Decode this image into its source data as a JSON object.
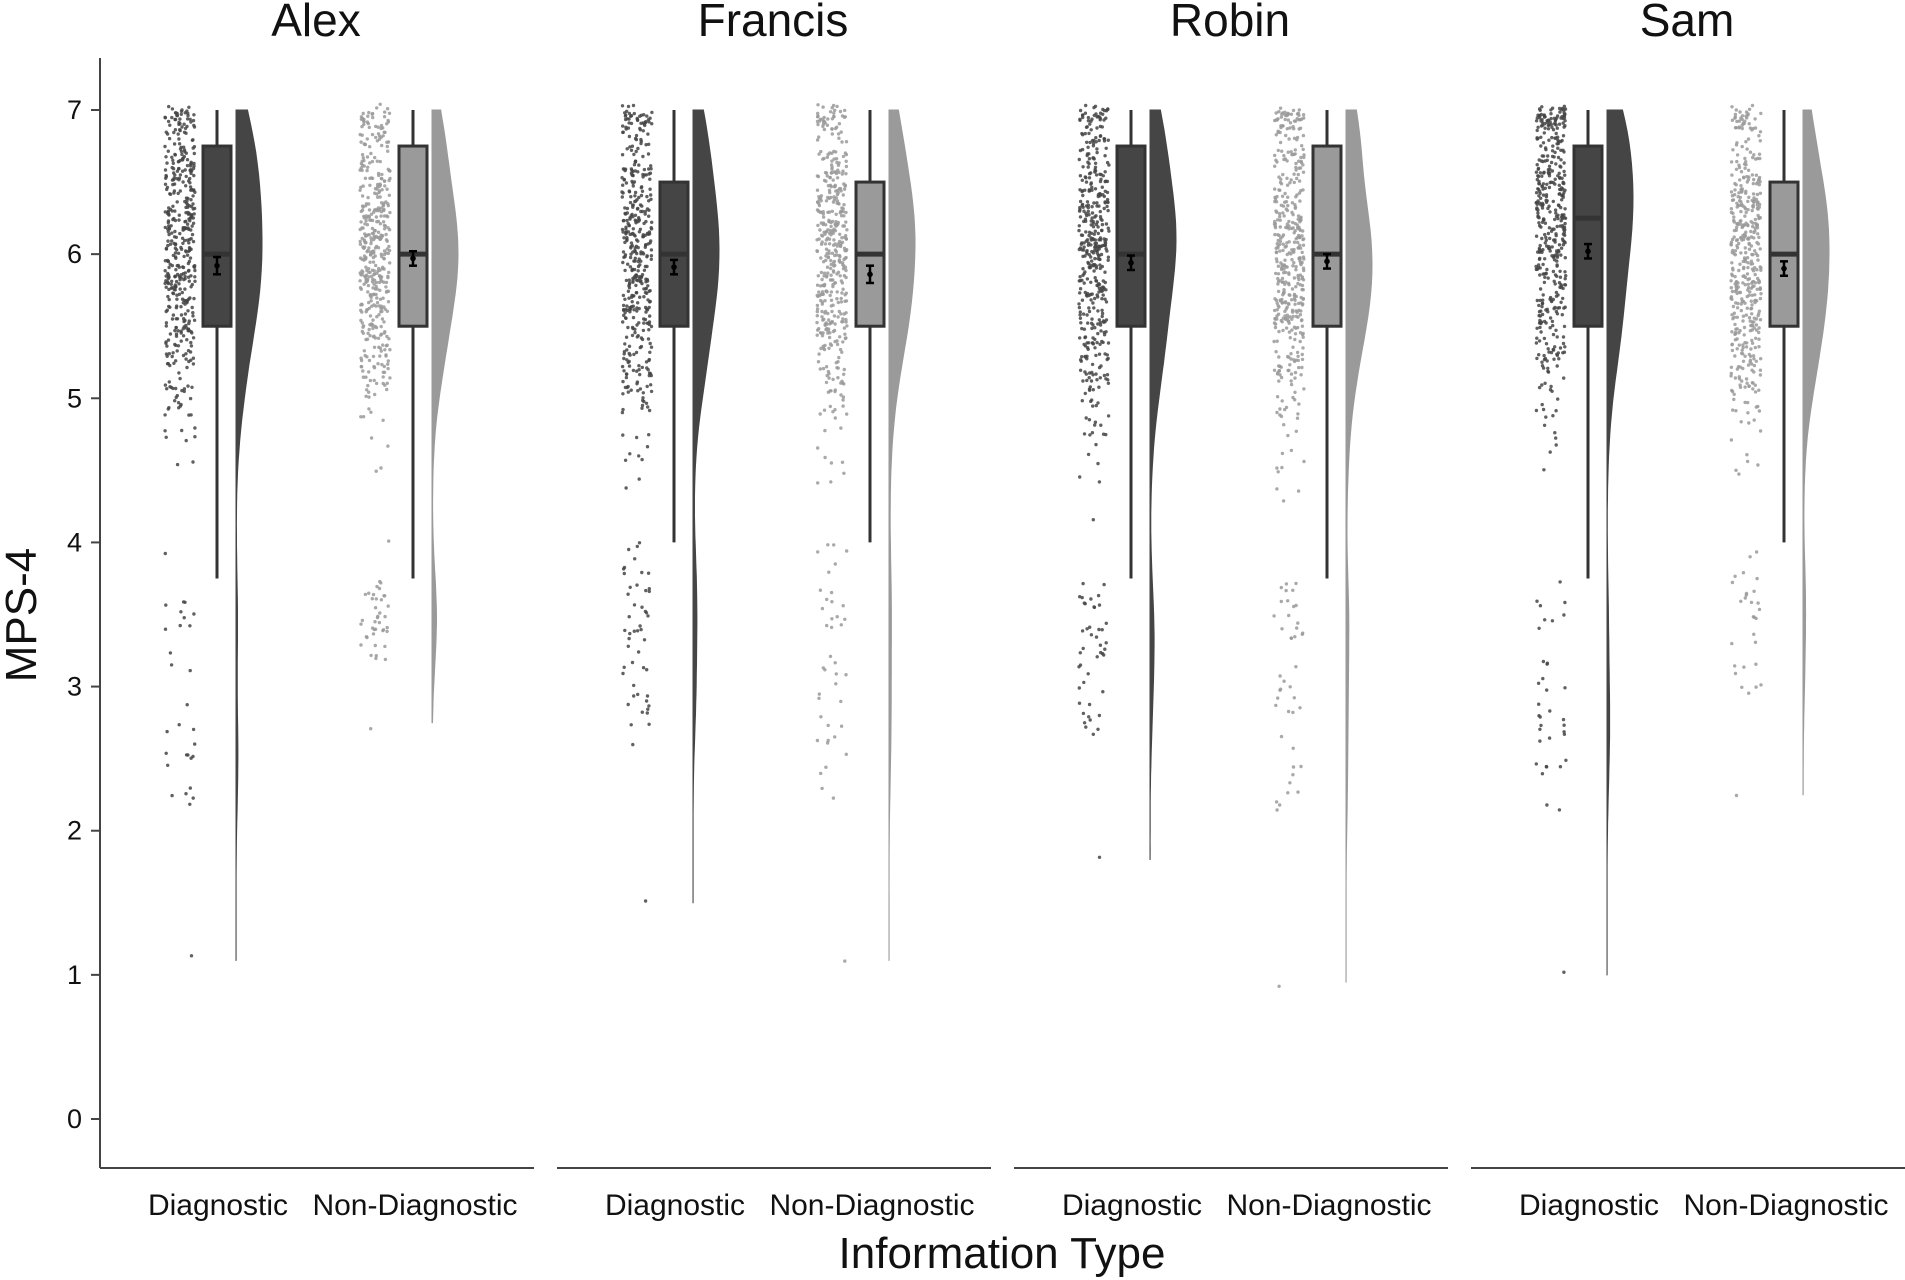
{
  "chart_data": {
    "type": "raincloud",
    "xlabel": "Information Type",
    "ylabel": "MPS-4",
    "ylim": [
      0,
      7
    ],
    "yticks": [
      "0",
      "1",
      "2",
      "3",
      "4",
      "5",
      "6",
      "7"
    ],
    "grid": false,
    "categories": [
      "Diagnostic",
      "Non-Diagnostic"
    ],
    "colors": {
      "Diagnostic": "#454545",
      "Non-Diagnostic": "#9a9a9a",
      "axis": "#444444"
    },
    "panels": [
      {
        "title": "Alex",
        "groups": [
          {
            "category": "Diagnostic",
            "median": 6.0,
            "q1": 5.5,
            "q3": 6.75,
            "whisker_low": 3.75,
            "whisker_high": 7.0,
            "mean": 5.92,
            "se": 0.06,
            "min": 1.1,
            "max": 7.0
          },
          {
            "category": "Non-Diagnostic",
            "median": 6.0,
            "q1": 5.5,
            "q3": 6.75,
            "whisker_low": 3.75,
            "whisker_high": 7.0,
            "mean": 5.97,
            "se": 0.05,
            "min": 2.75,
            "max": 7.0
          }
        ]
      },
      {
        "title": "Francis",
        "groups": [
          {
            "category": "Diagnostic",
            "median": 6.0,
            "q1": 5.5,
            "q3": 6.5,
            "whisker_low": 4.0,
            "whisker_high": 7.0,
            "mean": 5.91,
            "se": 0.05,
            "min": 1.5,
            "max": 7.0
          },
          {
            "category": "Non-Diagnostic",
            "median": 6.0,
            "q1": 5.5,
            "q3": 6.5,
            "whisker_low": 4.0,
            "whisker_high": 7.0,
            "mean": 5.86,
            "se": 0.06,
            "min": 1.1,
            "max": 7.0
          }
        ]
      },
      {
        "title": "Robin",
        "groups": [
          {
            "category": "Diagnostic",
            "median": 6.0,
            "q1": 5.5,
            "q3": 6.75,
            "whisker_low": 3.75,
            "whisker_high": 7.0,
            "mean": 5.94,
            "se": 0.05,
            "min": 1.8,
            "max": 7.0
          },
          {
            "category": "Non-Diagnostic",
            "median": 6.0,
            "q1": 5.5,
            "q3": 6.75,
            "whisker_low": 3.75,
            "whisker_high": 7.0,
            "mean": 5.95,
            "se": 0.05,
            "min": 0.95,
            "max": 7.0
          }
        ]
      },
      {
        "title": "Sam",
        "groups": [
          {
            "category": "Diagnostic",
            "median": 6.25,
            "q1": 5.5,
            "q3": 6.75,
            "whisker_low": 3.75,
            "whisker_high": 7.0,
            "mean": 6.02,
            "se": 0.05,
            "min": 1.0,
            "max": 7.0
          },
          {
            "category": "Non-Diagnostic",
            "median": 6.0,
            "q1": 5.5,
            "q3": 6.5,
            "whisker_low": 4.0,
            "whisker_high": 7.0,
            "mean": 5.9,
            "se": 0.05,
            "min": 2.25,
            "max": 7.0
          }
        ]
      }
    ]
  }
}
